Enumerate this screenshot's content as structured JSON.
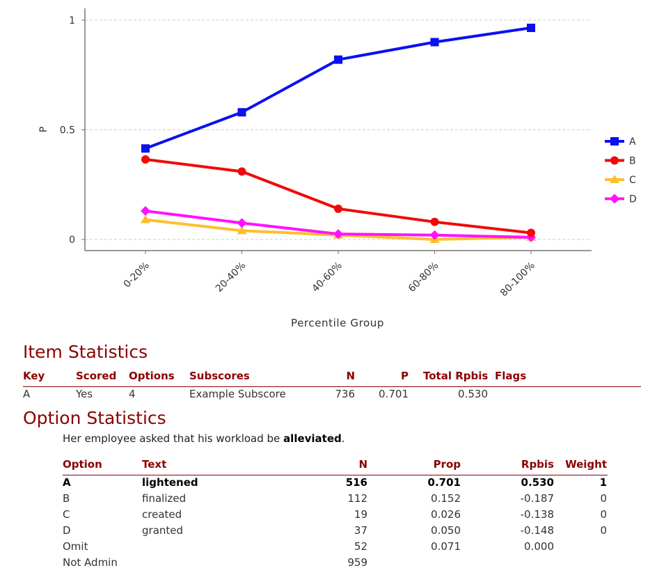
{
  "chart_data": {
    "type": "line",
    "title": "",
    "xlabel": "Percentile Group",
    "ylabel": "P",
    "categories": [
      "0-20%",
      "20-40%",
      "40-60%",
      "60-80%",
      "80-100%"
    ],
    "ylim": [
      -0.05,
      1.05
    ],
    "yticks": [
      0,
      0.5,
      1
    ],
    "ytick_labels": [
      "0",
      "0.5",
      "1"
    ],
    "grid": "horizontal dashed",
    "legend": "right",
    "series": [
      {
        "name": "A",
        "color": "#0a10f0",
        "marker": "square",
        "values": [
          0.415,
          0.58,
          0.82,
          0.9,
          0.965
        ]
      },
      {
        "name": "B",
        "color": "#f00a0a",
        "marker": "circle",
        "values": [
          0.365,
          0.31,
          0.14,
          0.08,
          0.03
        ]
      },
      {
        "name": "C",
        "color": "#fdbf2d",
        "marker": "triangle",
        "values": [
          0.09,
          0.04,
          0.02,
          0.0,
          0.01
        ]
      },
      {
        "name": "D",
        "color": "#ff12ff",
        "marker": "diamond",
        "values": [
          0.13,
          0.075,
          0.025,
          0.02,
          0.01
        ]
      }
    ]
  },
  "item_statistics": {
    "title": "Item Statistics",
    "headers": {
      "key": "Key",
      "scored": "Scored",
      "options": "Options",
      "subscores": "Subscores",
      "n": "N",
      "p": "P",
      "rpbis": "Total Rpbis",
      "flags": "Flags"
    },
    "row": {
      "key": "A",
      "scored": "Yes",
      "options": "4",
      "subscores": "Example Subscore",
      "n": "736",
      "p": "0.701",
      "rpbis": "0.530",
      "flags": ""
    }
  },
  "option_statistics": {
    "title": "Option Statistics",
    "stem_before": "Her employee asked that his workload be ",
    "stem_bold": "alleviated",
    "stem_after": ".",
    "headers": {
      "option": "Option",
      "text": "Text",
      "n": "N",
      "prop": "Prop",
      "rpbis": "Rpbis",
      "weight": "Weight"
    },
    "rows": [
      {
        "option": "A",
        "text": "lightened",
        "n": "516",
        "prop": "0.701",
        "rpbis": "0.530",
        "weight": "1",
        "key": true
      },
      {
        "option": "B",
        "text": "finalized",
        "n": "112",
        "prop": "0.152",
        "rpbis": "-0.187",
        "weight": "0"
      },
      {
        "option": "C",
        "text": "created",
        "n": "19",
        "prop": "0.026",
        "rpbis": "-0.138",
        "weight": "0"
      },
      {
        "option": "D",
        "text": "granted",
        "n": "37",
        "prop": "0.050",
        "rpbis": "-0.148",
        "weight": "0"
      },
      {
        "option": "Omit",
        "text": "",
        "n": "52",
        "prop": "0.071",
        "rpbis": "0.000",
        "weight": ""
      },
      {
        "option": "Not Admin",
        "text": "",
        "n": "959",
        "prop": "",
        "rpbis": "",
        "weight": ""
      }
    ]
  }
}
